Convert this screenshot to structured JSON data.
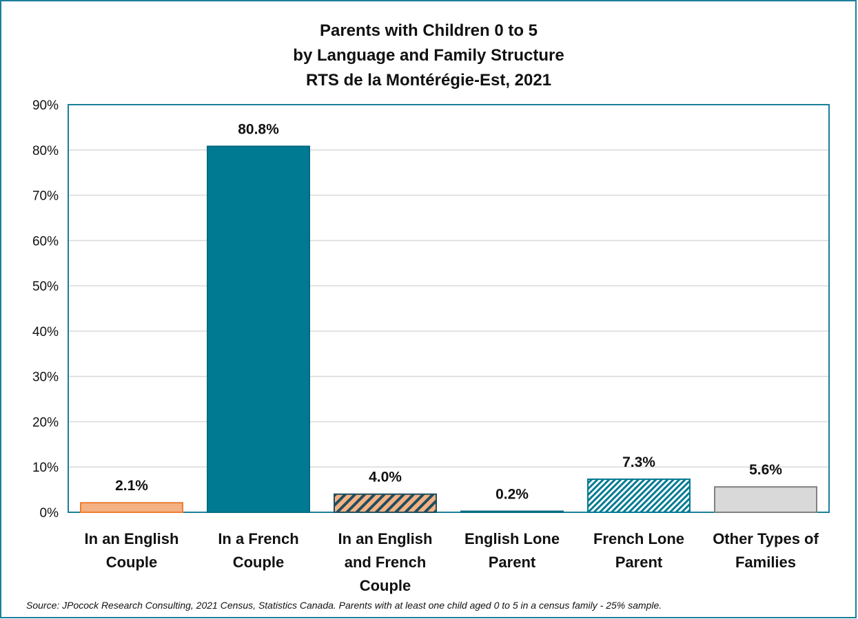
{
  "colors": {
    "border": "#1a7f9a",
    "plot_border": "#1a7f9a",
    "grid": "#d9d9d9",
    "orange": "#f4b183",
    "orange_edge": "#ed7d31",
    "teal": "#007a93",
    "grey": "#d9d9d9",
    "grey_edge": "#808080"
  },
  "chart_data": {
    "type": "bar",
    "title": [
      "Parents with Children 0 to 5",
      "by Language and Family Structure",
      "RTS de la Montérégie-Est, 2021"
    ],
    "categories": [
      [
        "In an English",
        "Couple"
      ],
      [
        "In a French",
        "Couple"
      ],
      [
        "In an English",
        "and French",
        "Couple"
      ],
      [
        "English Lone",
        "Parent"
      ],
      [
        "French Lone",
        "Parent"
      ],
      [
        "Other Types of",
        "Families"
      ]
    ],
    "values": [
      2.1,
      80.8,
      4.0,
      0.2,
      7.3,
      5.6
    ],
    "data_labels": [
      "2.1%",
      "80.8%",
      "4.0%",
      "0.2%",
      "7.3%",
      "5.6%"
    ],
    "bar_styles": [
      "orange",
      "teal",
      "orange-hatch",
      "teal",
      "teal-hatch",
      "grey"
    ],
    "y_ticks": [
      0,
      10,
      20,
      30,
      40,
      50,
      60,
      70,
      80,
      90
    ],
    "y_tick_labels": [
      "0%",
      "10%",
      "20%",
      "30%",
      "40%",
      "50%",
      "60%",
      "70%",
      "80%",
      "90%"
    ],
    "ylim": [
      0,
      90
    ],
    "grid": true,
    "legend": "none"
  },
  "source_note": "Source: JPocock Research Consulting, 2021 Census, Statistics Canada. Parents with at least one child aged 0 to 5 in a census family - 25% sample."
}
